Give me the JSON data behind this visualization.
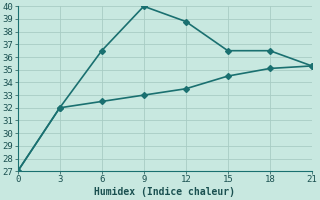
{
  "xlabel": "Humidex (Indice chaleur)",
  "x": [
    0,
    3,
    6,
    9,
    12,
    15,
    18,
    21
  ],
  "line1_y": [
    27,
    32,
    36.5,
    40,
    38.8,
    36.5,
    36.5,
    35.3
  ],
  "line2_y": [
    27,
    32,
    32.5,
    33,
    33.5,
    34.5,
    35.1,
    35.3
  ],
  "line_color": "#1a7070",
  "bg_color": "#c8e8e0",
  "grid_color": "#a8ccc4",
  "spine_color": "#1a7070",
  "tick_color": "#1a5050",
  "ylim_min": 27,
  "ylim_max": 40,
  "xlim_min": 0,
  "xlim_max": 21,
  "yticks": [
    27,
    28,
    29,
    30,
    31,
    32,
    33,
    34,
    35,
    36,
    37,
    38,
    39,
    40
  ],
  "xticks": [
    0,
    3,
    6,
    9,
    12,
    15,
    18,
    21
  ],
  "xlabel_fontsize": 7,
  "tick_fontsize": 6.5,
  "line_width": 1.2,
  "marker_size": 3
}
